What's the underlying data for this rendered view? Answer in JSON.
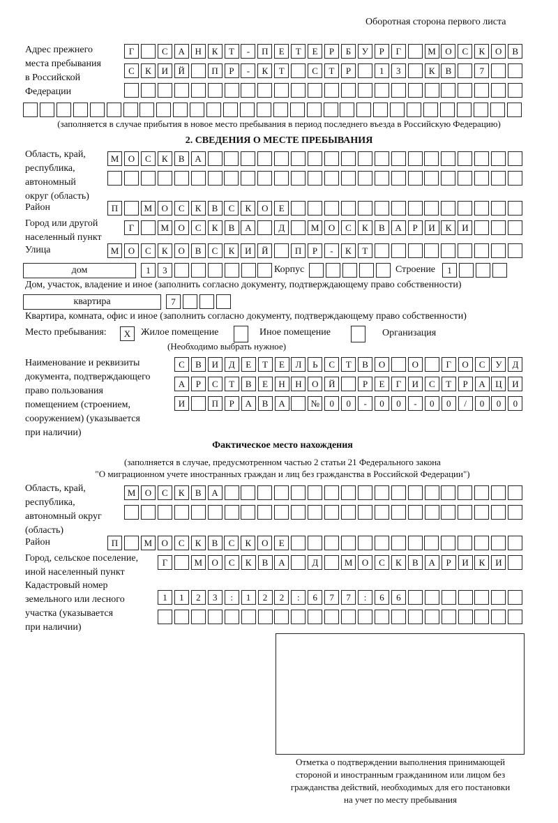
{
  "header": "Оборотная сторона первого листа",
  "prev_address": {
    "label": "Адрес прежнего\nместа пребывания\nв Российской\nФедерации",
    "rows": [
      [
        "Г",
        "",
        "С",
        "А",
        "Н",
        "К",
        "Т",
        "-",
        "П",
        "Е",
        "Т",
        "Е",
        "Р",
        "Б",
        "У",
        "Р",
        "Г",
        "",
        "М",
        "О",
        "С",
        "К",
        "О",
        "В"
      ],
      [
        "С",
        "К",
        "И",
        "Й",
        "",
        "П",
        "Р",
        "-",
        "К",
        "Т",
        "",
        "С",
        "Т",
        "Р",
        "",
        "1",
        "3",
        "",
        "К",
        "В",
        "",
        "7",
        "",
        ""
      ],
      [
        "",
        "",
        "",
        "",
        "",
        "",
        "",
        "",
        "",
        "",
        "",
        "",
        "",
        "",
        "",
        "",
        "",
        "",
        "",
        "",
        "",
        "",
        "",
        ""
      ],
      [
        "",
        "",
        "",
        "",
        "",
        "",
        "",
        "",
        "",
        "",
        "",
        "",
        "",
        "",
        "",
        "",
        "",
        "",
        "",
        "",
        "",
        "",
        "",
        "",
        "",
        "",
        "",
        "",
        "",
        ""
      ]
    ],
    "note": "(заполняется в случае прибытия в новое место пребывания в период последнего въезда в Российскую Федерацию)"
  },
  "section2": {
    "title": "2. СВЕДЕНИЯ О МЕСТЕ ПРЕБЫВАНИЯ",
    "region_label": "Область, край,\nреспублика,\nавтономный\nокруг (область)",
    "region_rows": [
      [
        "М",
        "О",
        "С",
        "К",
        "В",
        "А",
        "",
        "",
        "",
        "",
        "",
        "",
        "",
        "",
        "",
        "",
        "",
        "",
        "",
        "",
        "",
        "",
        "",
        "",
        ""
      ],
      [
        "",
        "",
        "",
        "",
        "",
        "",
        "",
        "",
        "",
        "",
        "",
        "",
        "",
        "",
        "",
        "",
        "",
        "",
        "",
        "",
        "",
        "",
        "",
        "",
        ""
      ]
    ],
    "district_label": "Район",
    "district": [
      "П",
      "",
      "М",
      "О",
      "С",
      "К",
      "В",
      "С",
      "К",
      "О",
      "Е",
      "",
      "",
      "",
      "",
      "",
      "",
      "",
      "",
      "",
      "",
      "",
      "",
      "",
      ""
    ],
    "city_label": "Город или другой\nнаселенный пункт",
    "city": [
      "Г",
      "",
      "М",
      "О",
      "С",
      "К",
      "В",
      "А",
      "",
      "Д",
      "",
      "М",
      "О",
      "С",
      "К",
      "В",
      "А",
      "Р",
      "И",
      "К",
      "И",
      "",
      "",
      ""
    ],
    "street_label": "Улица",
    "street": [
      "М",
      "О",
      "С",
      "К",
      "О",
      "В",
      "С",
      "К",
      "И",
      "Й",
      "",
      "П",
      "Р",
      "-",
      "К",
      "Т",
      "",
      "",
      "",
      "",
      "",
      "",
      "",
      "",
      ""
    ],
    "house_type": "дом",
    "house": [
      "1",
      "3",
      "",
      "",
      "",
      "",
      "",
      ""
    ],
    "building_label": "Корпус",
    "building": [
      "",
      "",
      "",
      "",
      ""
    ],
    "structure_label": "Строение",
    "structure": [
      "1",
      "",
      "",
      ""
    ],
    "house_note": "Дом, участок, владение и иное (заполнить согласно документу, подтверждающему право собственности)",
    "apt_type": "квартира",
    "apt": [
      "7",
      "",
      "",
      ""
    ],
    "apt_note": "Квартира, комната, офис и иное (заполнить согласно документу, подтверждающему право собственности)",
    "stay_label": "Место пребывания:",
    "stay_options": [
      {
        "mark": "X",
        "label": "Жилое помещение"
      },
      {
        "mark": "",
        "label": "Иное помещение"
      },
      {
        "mark": "",
        "label": "Организация"
      }
    ],
    "stay_note": "(Необходимо выбрать нужное)",
    "doc_label": "Наименование и реквизиты\nдокумента, подтверждающего\nправо пользования\nпомещением (строением,\nсооружением) (указывается\nпри наличии)",
    "doc_rows": [
      [
        "С",
        "В",
        "И",
        "Д",
        "Е",
        "Т",
        "Е",
        "Л",
        "Ь",
        "С",
        "Т",
        "В",
        "О",
        "",
        "О",
        "",
        "Г",
        "О",
        "С",
        "У",
        "Д"
      ],
      [
        "А",
        "Р",
        "С",
        "Т",
        "В",
        "Е",
        "Н",
        "Н",
        "О",
        "Й",
        "",
        "Р",
        "Е",
        "Г",
        "И",
        "С",
        "Т",
        "Р",
        "А",
        "Ц",
        "И"
      ],
      [
        "И",
        "",
        "П",
        "Р",
        "А",
        "В",
        "А",
        "",
        "№",
        "0",
        "0",
        "-",
        "0",
        "0",
        "-",
        "0",
        "0",
        "/",
        "0",
        "0",
        "0"
      ]
    ]
  },
  "actual": {
    "title": "Фактическое место нахождения",
    "note1": "(заполняется в случае, предусмотренном частью 2 статьи 21 Федерального закона",
    "note2": "\"О миграционном учете иностранных граждан и лиц без гражданства в Российской Федерации\")",
    "region_label": "Область, край,\nреспублика,\nавтономный округ\n(область)",
    "region_rows": [
      [
        "М",
        "О",
        "С",
        "К",
        "В",
        "А",
        "",
        "",
        "",
        "",
        "",
        "",
        "",
        "",
        "",
        "",
        "",
        "",
        "",
        "",
        "",
        "",
        "",
        ""
      ],
      [
        "",
        "",
        "",
        "",
        "",
        "",
        "",
        "",
        "",
        "",
        "",
        "",
        "",
        "",
        "",
        "",
        "",
        "",
        "",
        "",
        "",
        "",
        "",
        ""
      ]
    ],
    "district_label": "Район",
    "district": [
      "П",
      "",
      "М",
      "О",
      "С",
      "К",
      "В",
      "С",
      "К",
      "О",
      "Е",
      "",
      "",
      "",
      "",
      "",
      "",
      "",
      "",
      "",
      "",
      "",
      "",
      "",
      ""
    ],
    "city_label": "Город, сельское поселение,\nиной населенный пункт",
    "city": [
      "Г",
      "",
      "М",
      "О",
      "С",
      "К",
      "В",
      "А",
      "",
      "Д",
      "",
      "М",
      "О",
      "С",
      "К",
      "В",
      "А",
      "Р",
      "И",
      "К",
      "И",
      ""
    ],
    "cadastre_label": "Кадастровый номер\nземельного или лесного\nучастка (указывается\nпри наличии)",
    "cadastre_rows": [
      [
        "1",
        "1",
        "2",
        "3",
        ":",
        "1",
        "2",
        "2",
        ":",
        "6",
        "7",
        "7",
        ":",
        "6",
        "6",
        "",
        "",
        "",
        "",
        "",
        "",
        ""
      ],
      [
        "",
        "",
        "",
        "",
        "",
        "",
        "",
        "",
        "",
        "",
        "",
        "",
        "",
        "",
        "",
        "",
        "",
        "",
        "",
        "",
        "",
        ""
      ]
    ]
  },
  "stamp_caption": "Отметка о подтверждении выполнения принимающей\nстороной и иностранным гражданином или лицом без\nгражданства действий, необходимых для его постановки\nна учет по месту пребывания"
}
